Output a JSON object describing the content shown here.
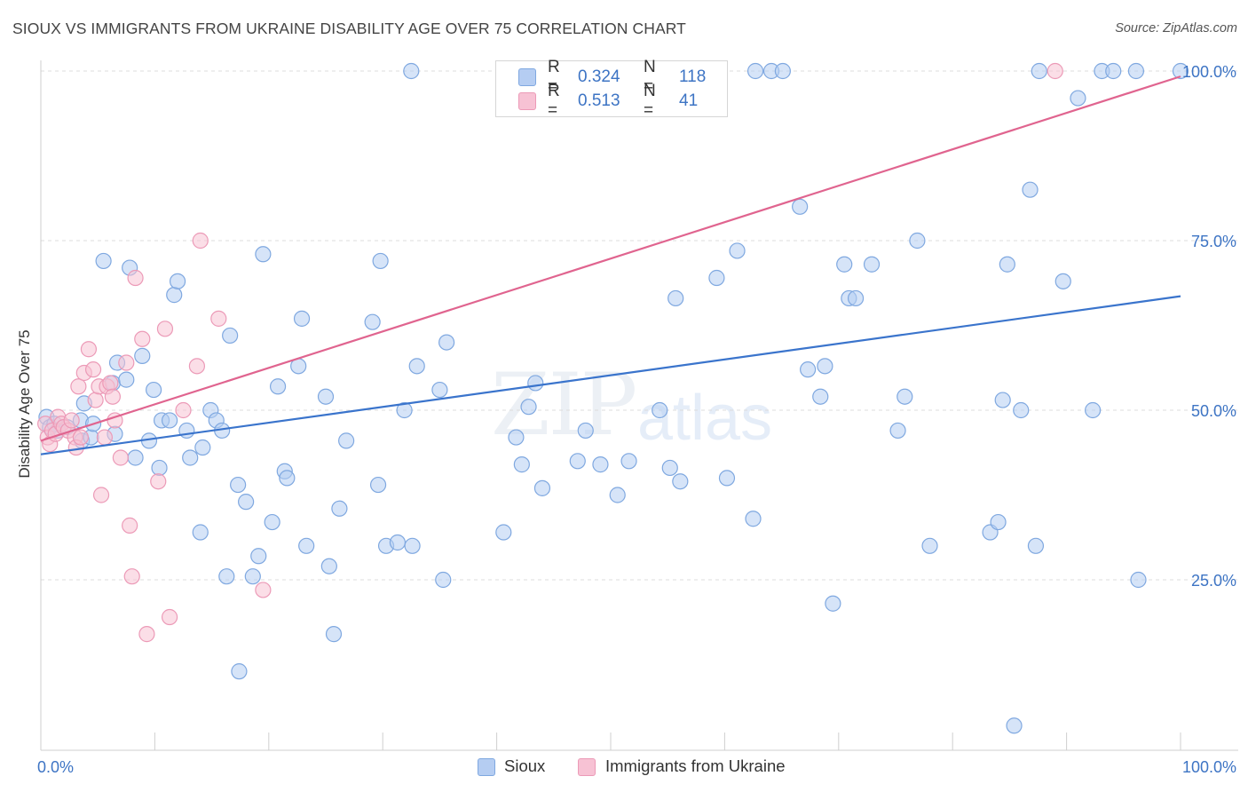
{
  "header": {
    "title": "SIOUX VS IMMIGRANTS FROM UKRAINE DISABILITY AGE OVER 75 CORRELATION CHART",
    "source": "Source: ZipAtlas.com"
  },
  "watermark": {
    "zip": "ZIP",
    "atlas": "atlas"
  },
  "legend": {
    "rows": [
      {
        "r_label": "R =",
        "r_value": "0.324",
        "n_label": "N =",
        "n_value": "118"
      },
      {
        "r_label": "R =",
        "r_value": "0.513",
        "n_label": "N =",
        "n_value": "41"
      }
    ]
  },
  "bottom_legend": {
    "series1": "Sioux",
    "series2": "Immigrants from Ukraine"
  },
  "colors": {
    "sioux_fill": "#b5cdf2",
    "sioux_stroke": "#7fa8e0",
    "sioux_line": "#3a74cc",
    "ukraine_fill": "#f7c2d4",
    "ukraine_stroke": "#ec9ab7",
    "ukraine_line": "#e0648f",
    "tick_text": "#3d74c4",
    "grid": "#dcdcdc"
  },
  "chart_data": {
    "type": "scatter",
    "title": "SIOUX VS IMMIGRANTS FROM UKRAINE DISABILITY AGE OVER 75 CORRELATION CHART",
    "xlabel": "",
    "ylabel": "Disability Age Over 75",
    "xlim": [
      0,
      100
    ],
    "ylim": [
      0,
      103
    ],
    "x_tick_labels": [
      "0.0%",
      "100.0%"
    ],
    "y_ticks": [
      25,
      50,
      75,
      100
    ],
    "y_tick_labels": [
      "25.0%",
      "50.0%",
      "75.0%",
      "100.0%"
    ],
    "grid": true,
    "legend_position": "top-center",
    "series": [
      {
        "name": "Sioux",
        "r": 0.324,
        "n": 118,
        "trend": {
          "x": [
            0,
            100
          ],
          "y": [
            43.5,
            66.8
          ]
        },
        "points": [
          [
            0.5,
            49
          ],
          [
            0.8,
            47.5
          ],
          [
            1.2,
            48
          ],
          [
            1.5,
            47
          ],
          [
            2.3,
            47.5
          ],
          [
            3.5,
            48.5
          ],
          [
            3.6,
            45.5
          ],
          [
            3.8,
            51
          ],
          [
            4.4,
            46
          ],
          [
            4.6,
            48
          ],
          [
            5.5,
            72
          ],
          [
            6.3,
            54
          ],
          [
            6.5,
            46.5
          ],
          [
            6.7,
            57
          ],
          [
            7.5,
            54.5
          ],
          [
            7.8,
            71
          ],
          [
            8.3,
            43
          ],
          [
            8.9,
            58
          ],
          [
            9.5,
            45.5
          ],
          [
            9.9,
            53
          ],
          [
            10.4,
            41.5
          ],
          [
            10.6,
            48.5
          ],
          [
            11.3,
            48.5
          ],
          [
            11.7,
            67
          ],
          [
            12.0,
            69
          ],
          [
            12.8,
            47
          ],
          [
            13.1,
            43
          ],
          [
            14.2,
            44.5
          ],
          [
            14.0,
            32
          ],
          [
            14.9,
            50
          ],
          [
            15.4,
            48.5
          ],
          [
            15.9,
            47
          ],
          [
            16.3,
            25.5
          ],
          [
            16.6,
            61
          ],
          [
            17.3,
            39
          ],
          [
            17.4,
            11.5
          ],
          [
            18.0,
            36.5
          ],
          [
            18.6,
            25.5
          ],
          [
            19.1,
            28.5
          ],
          [
            19.5,
            73
          ],
          [
            20.3,
            33.5
          ],
          [
            20.8,
            53.5
          ],
          [
            21.4,
            41
          ],
          [
            21.6,
            40
          ],
          [
            22.6,
            56.5
          ],
          [
            22.9,
            63.5
          ],
          [
            23.3,
            30
          ],
          [
            25.0,
            52
          ],
          [
            25.3,
            27
          ],
          [
            25.7,
            17
          ],
          [
            26.2,
            35.5
          ],
          [
            26.8,
            45.5
          ],
          [
            29.1,
            63
          ],
          [
            29.6,
            39
          ],
          [
            29.8,
            72
          ],
          [
            30.3,
            30
          ],
          [
            31.3,
            30.5
          ],
          [
            31.9,
            50
          ],
          [
            32.5,
            100
          ],
          [
            32.6,
            30
          ],
          [
            33.0,
            56.5
          ],
          [
            35.0,
            53
          ],
          [
            35.3,
            25
          ],
          [
            35.6,
            60
          ],
          [
            40.6,
            32
          ],
          [
            41.7,
            46
          ],
          [
            42.2,
            42
          ],
          [
            42.8,
            50.5
          ],
          [
            43.4,
            54
          ],
          [
            44.0,
            38.5
          ],
          [
            47.1,
            42.5
          ],
          [
            47.8,
            47
          ],
          [
            49.1,
            42
          ],
          [
            50.6,
            37.5
          ],
          [
            51.6,
            42.5
          ],
          [
            54.3,
            50
          ],
          [
            55.2,
            41.5
          ],
          [
            55.7,
            66.5
          ],
          [
            56.1,
            39.5
          ],
          [
            59.3,
            69.5
          ],
          [
            60.2,
            40
          ],
          [
            61.1,
            73.5
          ],
          [
            62.5,
            34
          ],
          [
            62.7,
            100
          ],
          [
            64.1,
            100
          ],
          [
            65.1,
            100
          ],
          [
            66.6,
            80
          ],
          [
            67.3,
            56
          ],
          [
            68.8,
            56.5
          ],
          [
            68.4,
            52
          ],
          [
            69.5,
            21.5
          ],
          [
            70.5,
            71.5
          ],
          [
            70.9,
            66.5
          ],
          [
            71.5,
            66.5
          ],
          [
            72.9,
            71.5
          ],
          [
            75.2,
            47
          ],
          [
            75.8,
            52
          ],
          [
            76.9,
            75
          ],
          [
            78.0,
            30
          ],
          [
            83.3,
            32
          ],
          [
            84.0,
            33.5
          ],
          [
            84.4,
            51.5
          ],
          [
            84.8,
            71.5
          ],
          [
            85.4,
            3.5
          ],
          [
            86.0,
            50
          ],
          [
            86.8,
            82.5
          ],
          [
            87.3,
            30
          ],
          [
            87.6,
            100
          ],
          [
            89.7,
            69
          ],
          [
            91.0,
            96
          ],
          [
            92.3,
            50
          ],
          [
            93.1,
            100
          ],
          [
            94.1,
            100
          ],
          [
            96.1,
            100
          ],
          [
            96.3,
            25
          ],
          [
            100.0,
            100
          ]
        ]
      },
      {
        "name": "Immigrants from Ukraine",
        "r": 0.513,
        "n": 41,
        "trend": {
          "x": [
            0,
            100
          ],
          "y": [
            45.5,
            99.2
          ]
        },
        "points": [
          [
            0.4,
            48
          ],
          [
            0.6,
            46
          ],
          [
            0.8,
            45
          ],
          [
            1.0,
            47
          ],
          [
            1.3,
            46.5
          ],
          [
            1.5,
            49
          ],
          [
            1.8,
            48
          ],
          [
            2.0,
            47.5
          ],
          [
            2.4,
            47
          ],
          [
            2.7,
            48.5
          ],
          [
            3.0,
            46
          ],
          [
            3.1,
            44.5
          ],
          [
            3.3,
            53.5
          ],
          [
            3.5,
            46
          ],
          [
            3.8,
            55.5
          ],
          [
            4.2,
            59
          ],
          [
            4.6,
            56
          ],
          [
            4.8,
            51.5
          ],
          [
            5.1,
            53.5
          ],
          [
            5.3,
            37.5
          ],
          [
            5.6,
            46
          ],
          [
            5.8,
            53.5
          ],
          [
            6.1,
            54
          ],
          [
            6.3,
            52
          ],
          [
            6.5,
            48.5
          ],
          [
            7.0,
            43
          ],
          [
            7.5,
            57
          ],
          [
            7.8,
            33
          ],
          [
            8.0,
            25.5
          ],
          [
            8.3,
            69.5
          ],
          [
            8.9,
            60.5
          ],
          [
            9.3,
            17
          ],
          [
            10.3,
            39.5
          ],
          [
            10.9,
            62
          ],
          [
            11.3,
            19.5
          ],
          [
            12.5,
            50
          ],
          [
            13.7,
            56.5
          ],
          [
            14.0,
            75
          ],
          [
            15.6,
            63.5
          ],
          [
            19.5,
            23.5
          ],
          [
            89.0,
            100
          ]
        ]
      }
    ]
  }
}
